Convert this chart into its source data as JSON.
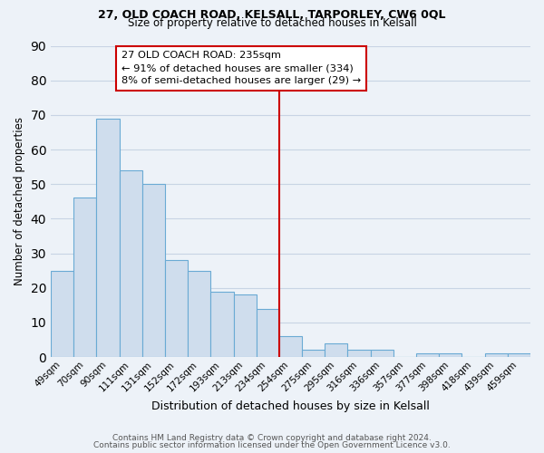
{
  "title1": "27, OLD COACH ROAD, KELSALL, TARPORLEY, CW6 0QL",
  "title2": "Size of property relative to detached houses in Kelsall",
  "xlabel": "Distribution of detached houses by size in Kelsall",
  "ylabel": "Number of detached properties",
  "bar_labels": [
    "49sqm",
    "70sqm",
    "90sqm",
    "111sqm",
    "131sqm",
    "152sqm",
    "172sqm",
    "193sqm",
    "213sqm",
    "234sqm",
    "254sqm",
    "275sqm",
    "295sqm",
    "316sqm",
    "336sqm",
    "357sqm",
    "377sqm",
    "398sqm",
    "418sqm",
    "439sqm",
    "459sqm"
  ],
  "bar_values": [
    25,
    46,
    69,
    54,
    50,
    28,
    25,
    19,
    18,
    14,
    6,
    2,
    4,
    2,
    2,
    0,
    1,
    1,
    0,
    1,
    1
  ],
  "bar_color": "#cfdded",
  "bar_edge_color": "#6aaad4",
  "vline_x_bar_index": 9,
  "vline_color": "#cc0000",
  "annotation_text": "27 OLD COACH ROAD: 235sqm\n← 91% of detached houses are smaller (334)\n8% of semi-detached houses are larger (29) →",
  "ylim": [
    0,
    90
  ],
  "yticks": [
    0,
    10,
    20,
    30,
    40,
    50,
    60,
    70,
    80,
    90
  ],
  "grid_color": "#c8d4e4",
  "bg_color": "#edf2f8",
  "footer1": "Contains HM Land Registry data © Crown copyright and database right 2024.",
  "footer2": "Contains public sector information licensed under the Open Government Licence v3.0."
}
